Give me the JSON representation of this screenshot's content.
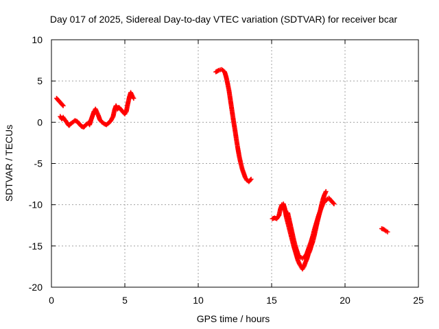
{
  "chart_data": {
    "type": "scatter",
    "title": "Day 017 of 2025, Sidereal Day-to-day VTEC variation (SDTVAR) for receiver bcar",
    "xlabel": "GPS time / hours",
    "ylabel": "SDTVAR / TECUs",
    "xlim": [
      0,
      25
    ],
    "ylim": [
      -20,
      10
    ],
    "xticks": [
      0,
      5,
      10,
      15,
      20,
      25
    ],
    "yticks": [
      10,
      5,
      0,
      -5,
      -10,
      -15,
      -20
    ],
    "grid": true,
    "legend": "none",
    "marker": "plus",
    "color": "#ff0000",
    "segments": [
      [
        [
          0.35,
          2.9
        ],
        [
          0.45,
          2.7
        ],
        [
          0.55,
          2.5
        ],
        [
          0.65,
          2.3
        ],
        [
          0.75,
          2.1
        ],
        [
          0.8,
          2.0
        ]
      ],
      [
        [
          0.6,
          0.7
        ],
        [
          0.7,
          0.4
        ],
        [
          0.8,
          0.6
        ],
        [
          0.9,
          0.3
        ],
        [
          1.0,
          0.1
        ],
        [
          1.1,
          -0.2
        ],
        [
          1.2,
          -0.4
        ],
        [
          1.3,
          -0.2
        ],
        [
          1.45,
          0.0
        ],
        [
          1.6,
          0.2
        ],
        [
          1.75,
          0.1
        ],
        [
          1.9,
          -0.2
        ],
        [
          2.05,
          -0.5
        ],
        [
          2.2,
          -0.6
        ],
        [
          2.35,
          -0.3
        ],
        [
          2.5,
          -0.1
        ],
        [
          2.6,
          -0.3
        ],
        [
          2.7,
          0.3
        ],
        [
          2.8,
          0.8
        ],
        [
          2.9,
          1.3
        ],
        [
          3.0,
          1.6
        ],
        [
          3.1,
          1.2
        ],
        [
          3.2,
          0.8
        ],
        [
          3.3,
          0.3
        ],
        [
          3.45,
          0.0
        ],
        [
          3.6,
          -0.2
        ],
        [
          3.75,
          -0.3
        ],
        [
          3.9,
          -0.1
        ],
        [
          4.05,
          0.2
        ],
        [
          4.2,
          0.7
        ],
        [
          4.3,
          1.5
        ],
        [
          4.4,
          2.0
        ],
        [
          4.5,
          1.6
        ],
        [
          4.6,
          1.8
        ],
        [
          4.75,
          1.5
        ],
        [
          4.9,
          1.2
        ],
        [
          5.0,
          1.0
        ],
        [
          5.1,
          1.3
        ],
        [
          5.2,
          2.2
        ],
        [
          5.3,
          3.0
        ],
        [
          5.4,
          3.6
        ],
        [
          5.5,
          3.2
        ],
        [
          5.6,
          2.9
        ]
      ],
      [
        [
          11.2,
          6.1
        ],
        [
          11.4,
          6.3
        ],
        [
          11.6,
          6.4
        ],
        [
          11.8,
          6.1
        ],
        [
          11.9,
          5.5
        ],
        [
          12.0,
          4.7
        ],
        [
          12.1,
          3.8
        ],
        [
          12.2,
          2.6
        ],
        [
          12.3,
          1.4
        ],
        [
          12.4,
          0.2
        ],
        [
          12.5,
          -0.9
        ],
        [
          12.6,
          -2.1
        ],
        [
          12.7,
          -3.2
        ],
        [
          12.8,
          -4.2
        ],
        [
          12.9,
          -5.0
        ],
        [
          13.0,
          -5.7
        ],
        [
          13.1,
          -6.2
        ],
        [
          13.2,
          -6.7
        ],
        [
          13.3,
          -7.0
        ],
        [
          13.45,
          -7.2
        ],
        [
          13.6,
          -6.9
        ]
      ],
      [
        [
          15.05,
          -11.7
        ],
        [
          15.2,
          -11.6
        ],
        [
          15.35,
          -11.7
        ],
        [
          15.5,
          -11.3
        ],
        [
          15.6,
          -10.5
        ],
        [
          15.7,
          -10.0
        ],
        [
          15.8,
          -9.9
        ],
        [
          15.9,
          -10.5
        ],
        [
          16.0,
          -11.5
        ],
        [
          16.1,
          -12.2
        ],
        [
          16.2,
          -12.9
        ],
        [
          16.3,
          -13.6
        ],
        [
          16.4,
          -14.3
        ],
        [
          16.5,
          -15.0
        ],
        [
          16.6,
          -15.6
        ],
        [
          16.7,
          -16.2
        ],
        [
          16.8,
          -16.8
        ],
        [
          16.9,
          -17.2
        ],
        [
          17.0,
          -17.5
        ],
        [
          17.1,
          -17.8
        ],
        [
          17.2,
          -17.5
        ],
        [
          17.3,
          -17.0
        ],
        [
          17.4,
          -16.6
        ],
        [
          17.5,
          -16.0
        ],
        [
          17.6,
          -15.6
        ],
        [
          17.7,
          -15.0
        ],
        [
          17.8,
          -14.5
        ],
        [
          17.9,
          -13.8
        ],
        [
          18.0,
          -13.0
        ],
        [
          18.1,
          -12.2
        ],
        [
          18.2,
          -11.5
        ],
        [
          18.3,
          -10.8
        ],
        [
          18.4,
          -10.0
        ],
        [
          18.5,
          -9.3
        ],
        [
          18.6,
          -8.8
        ],
        [
          18.7,
          -8.4
        ]
      ],
      [
        [
          16.1,
          -11.0
        ],
        [
          16.2,
          -11.8
        ],
        [
          16.3,
          -12.6
        ],
        [
          16.4,
          -13.4
        ],
        [
          16.5,
          -14.2
        ],
        [
          16.6,
          -14.9
        ],
        [
          16.7,
          -15.5
        ],
        [
          16.8,
          -16.0
        ],
        [
          16.9,
          -16.3
        ],
        [
          17.0,
          -16.4
        ],
        [
          17.1,
          -16.5
        ],
        [
          17.2,
          -16.4
        ],
        [
          17.3,
          -16.2
        ],
        [
          17.4,
          -15.9
        ],
        [
          17.5,
          -15.4
        ],
        [
          17.6,
          -14.9
        ],
        [
          17.7,
          -14.4
        ],
        [
          17.8,
          -13.8
        ],
        [
          17.9,
          -13.1
        ],
        [
          18.0,
          -12.5
        ],
        [
          18.1,
          -11.9
        ],
        [
          18.2,
          -11.3
        ],
        [
          18.3,
          -10.8
        ],
        [
          18.4,
          -10.3
        ],
        [
          18.5,
          -9.9
        ],
        [
          18.6,
          -9.6
        ],
        [
          18.7,
          -9.5
        ],
        [
          18.8,
          -9.3
        ],
        [
          18.9,
          -9.2
        ],
        [
          19.0,
          -9.4
        ],
        [
          19.1,
          -9.6
        ],
        [
          19.25,
          -9.9
        ]
      ],
      [
        [
          22.5,
          -12.9
        ],
        [
          22.65,
          -13.0
        ],
        [
          22.8,
          -13.2
        ],
        [
          22.9,
          -13.3
        ]
      ]
    ]
  }
}
